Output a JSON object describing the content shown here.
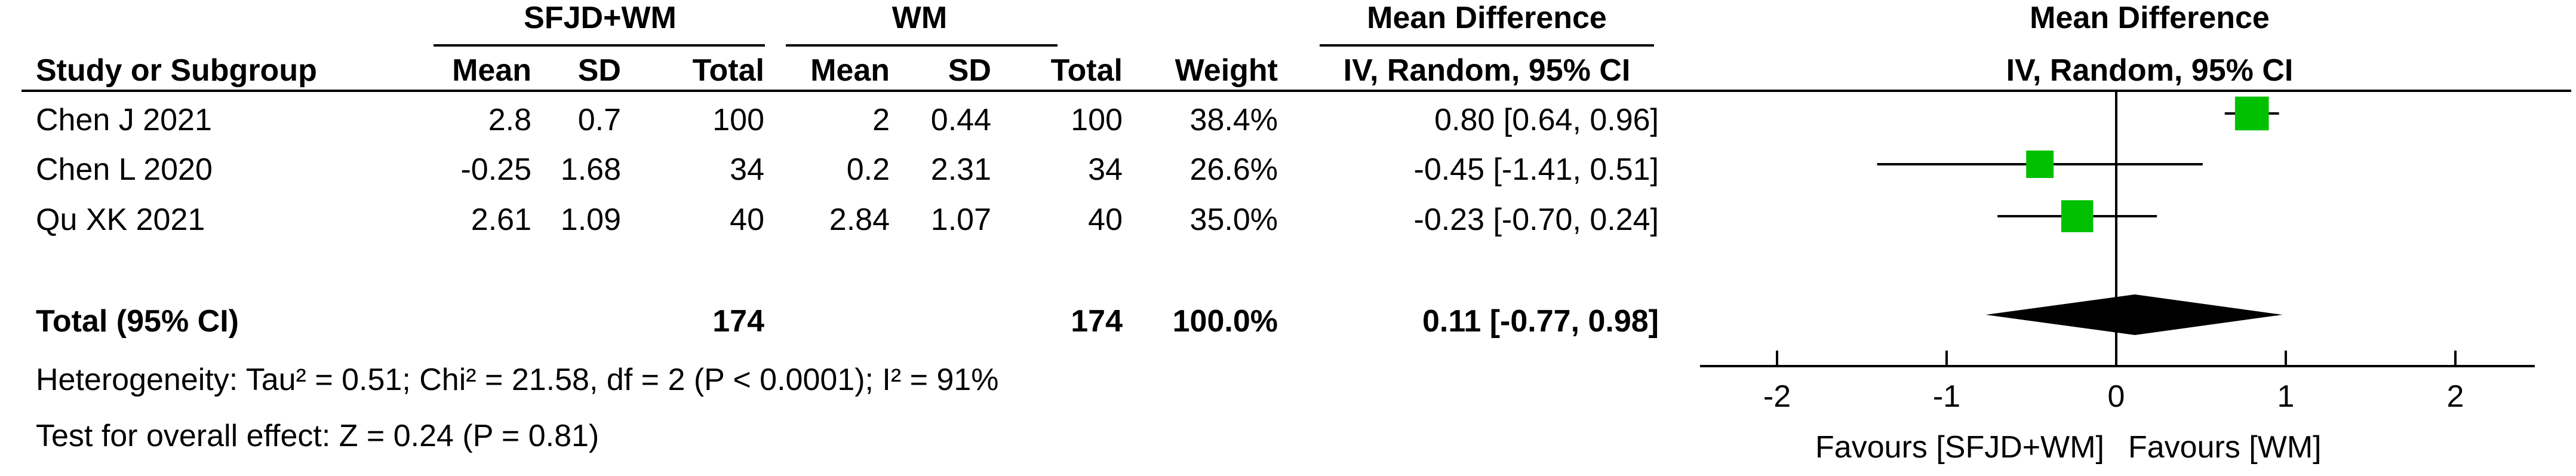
{
  "header": {
    "group1": "SFJD+WM",
    "group2": "WM",
    "effect_title": "Mean Difference",
    "plot_title": "Mean Difference",
    "columns": {
      "study": "Study or Subgroup",
      "mean1": "Mean",
      "sd1": "SD",
      "total1": "Total",
      "mean2": "Mean",
      "sd2": "SD",
      "total2": "Total",
      "weight": "Weight",
      "effect": "IV, Random, 95% CI",
      "plot": "IV, Random, 95% CI"
    }
  },
  "studies": [
    {
      "study": "Chen J 2021",
      "mean1": "2.8",
      "sd1": "0.7",
      "total1": "100",
      "mean2": "2",
      "sd2": "0.44",
      "total2": "100",
      "weight": "38.4%",
      "ci_text": "0.80 [0.64, 0.96]"
    },
    {
      "study": "Chen L 2020",
      "mean1": "-0.25",
      "sd1": "1.68",
      "total1": "34",
      "mean2": "0.2",
      "sd2": "2.31",
      "total2": "34",
      "weight": "26.6%",
      "ci_text": "-0.45 [-1.41, 0.51]"
    },
    {
      "study": "Qu XK 2021",
      "mean1": "2.61",
      "sd1": "1.09",
      "total1": "40",
      "mean2": "2.84",
      "sd2": "1.07",
      "total2": "40",
      "weight": "35.0%",
      "ci_text": "-0.23 [-0.70, 0.24]"
    }
  ],
  "total": {
    "label": "Total (95% CI)",
    "total1": "174",
    "total2": "174",
    "weight": "100.0%",
    "ci_text": "0.11 [-0.77, 0.98]"
  },
  "heterogeneity": "Heterogeneity: Tau² = 0.51; Chi² = 21.58, df = 2 (P < 0.0001); I² = 91%",
  "overall_effect": "Test for overall effect: Z = 0.24 (P = 0.81)",
  "axis": {
    "ticks": [
      -2,
      -1,
      0,
      1,
      2
    ],
    "tick_labels": [
      "-2",
      "-1",
      "0",
      "1",
      "2"
    ],
    "favours_left": "Favours [SFJD+WM]",
    "favours_right": "Favours [WM]"
  },
  "chart_data": {
    "type": "forest",
    "title": "Mean Difference IV, Random, 95% CI",
    "xlim": [
      -2,
      2
    ],
    "reference_line": 0,
    "square_color": "#00c000",
    "diamond_color": "#000000",
    "studies": [
      {
        "name": "Chen J 2021",
        "md": 0.8,
        "lower": 0.64,
        "upper": 0.96,
        "weight": 38.4
      },
      {
        "name": "Chen L 2020",
        "md": -0.45,
        "lower": -1.41,
        "upper": 0.51,
        "weight": 26.6
      },
      {
        "name": "Qu XK 2021",
        "md": -0.23,
        "lower": -0.7,
        "upper": 0.24,
        "weight": 35.0
      }
    ],
    "pooled": {
      "md": 0.11,
      "lower": -0.77,
      "upper": 0.98
    }
  }
}
